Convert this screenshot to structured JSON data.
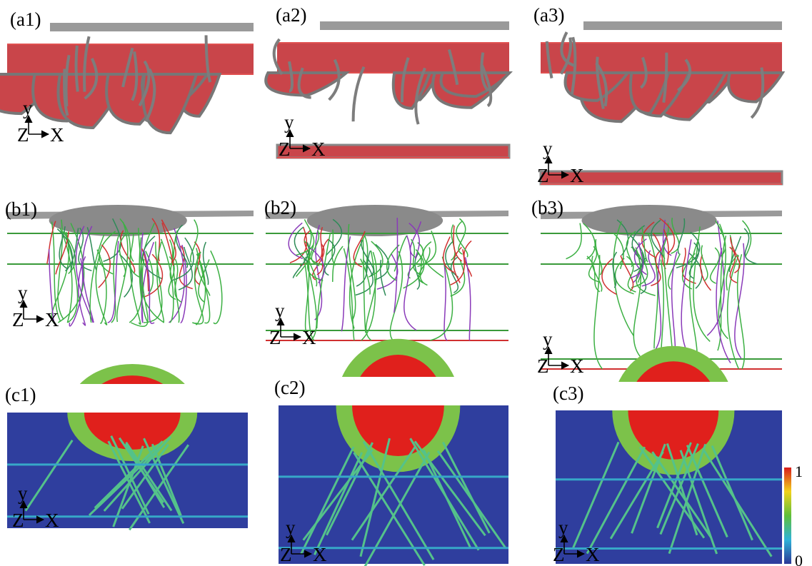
{
  "panels": [
    {
      "label": "(a1)"
    },
    {
      "label": "(a2)"
    },
    {
      "label": "(a3)"
    },
    {
      "label": "(b1)"
    },
    {
      "label": "(b2)"
    },
    {
      "label": "(b3)"
    },
    {
      "label": "(c1)"
    },
    {
      "label": "(c2)"
    },
    {
      "label": "(c3)"
    }
  ],
  "axes": {
    "y": "y",
    "z": "Z",
    "x": "X"
  },
  "colorbar": {
    "max": "1",
    "min": "0"
  }
}
